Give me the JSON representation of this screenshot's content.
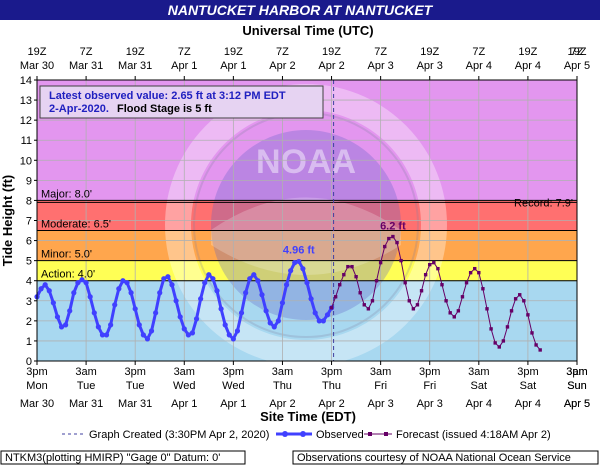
{
  "chart_data": {
    "type": "line",
    "title": "NANTUCKET HARBOR AT NANTUCKET",
    "top_axis_title": "Universal Time (UTC)",
    "bottom_axis_title": "Site Time (EDT)",
    "ylabel": "Tide Height (ft)",
    "ylim": [
      0,
      14
    ],
    "yticks": [
      0,
      1,
      2,
      3,
      4,
      5,
      6,
      7,
      8,
      9,
      10,
      11,
      12,
      13,
      14
    ],
    "grid": true,
    "x_range_hours": [
      0,
      132
    ],
    "x_tick_hours": [
      0,
      12,
      24,
      36,
      48,
      60,
      72,
      84,
      96,
      108,
      120,
      132
    ],
    "top_ticks": [
      {
        "time": "19Z",
        "date": "Mar 30"
      },
      {
        "time": "7Z",
        "date": "Mar 31"
      },
      {
        "time": "19Z",
        "date": "Mar 31"
      },
      {
        "time": "7Z",
        "date": "Apr 1"
      },
      {
        "time": "19Z",
        "date": "Apr 1"
      },
      {
        "time": "7Z",
        "date": "Apr 2"
      },
      {
        "time": "19Z",
        "date": "Apr 2"
      },
      {
        "time": "7Z",
        "date": "Apr 3"
      },
      {
        "time": "19Z",
        "date": "Apr 3"
      },
      {
        "time": "7Z",
        "date": "Apr 4"
      },
      {
        "time": "19Z",
        "date": "Apr 4"
      },
      {
        "time": "7Z",
        "date": "Apr 5"
      }
    ],
    "bottom_ticks": [
      {
        "time": "3pm",
        "day": "Mon",
        "date": "Mar 30"
      },
      {
        "time": "3am",
        "day": "Tue",
        "date": "Mar 31"
      },
      {
        "time": "3pm",
        "day": "Tue",
        "date": "Mar 31"
      },
      {
        "time": "3am",
        "day": "Wed",
        "date": "Apr 1"
      },
      {
        "time": "3pm",
        "day": "Wed",
        "date": "Apr 1"
      },
      {
        "time": "3am",
        "day": "Thu",
        "date": "Apr 2"
      },
      {
        "time": "3pm",
        "day": "Thu",
        "date": "Apr 2"
      },
      {
        "time": "3am",
        "day": "Fri",
        "date": "Apr 3"
      },
      {
        "time": "3pm",
        "day": "Fri",
        "date": "Apr 3"
      },
      {
        "time": "3am",
        "day": "Sat",
        "date": "Apr 4"
      },
      {
        "time": "3pm",
        "day": "Sat",
        "date": "Apr 4"
      },
      {
        "time": "3am",
        "day": "Sun",
        "date": "Apr 5"
      }
    ],
    "extra_bottom_tick": {
      "time": "3pm",
      "day": "Sun",
      "date": "Apr 5"
    },
    "extra_top_tick": {
      "time": "19Z",
      "date": ""
    },
    "bands": [
      {
        "name": "Major",
        "label": "Major: 8.0'",
        "from": 8,
        "to": 14,
        "color": "#e396ef"
      },
      {
        "name": "Moderate",
        "label": "Moderate: 6.5'",
        "from": 6.5,
        "to": 8,
        "color": "#ff7070"
      },
      {
        "name": "Minor",
        "label": "Minor: 5.0'",
        "from": 5,
        "to": 6.5,
        "color": "#ffa64d"
      },
      {
        "name": "Action",
        "label": "Action: 4.0'",
        "from": 4,
        "to": 5,
        "color": "#ffff55"
      }
    ],
    "record": {
      "label": "Record: 7.9'",
      "value": 7.9
    },
    "graph_created_hour": 72.5,
    "observed_peak_label": "4.96 ft",
    "forecast_peak_label": "6.2 ft",
    "info_box": {
      "line1": "Latest observed value: 2.65 ft at 3:12 PM EDT",
      "line2_date": "2-Apr-2020.",
      "line2_rest": "Flood Stage is 5 ft"
    },
    "series": [
      {
        "name": "Observed",
        "color": "#4040ff",
        "points": [
          [
            0,
            3.2
          ],
          [
            1,
            3.6
          ],
          [
            2,
            3.8
          ],
          [
            3,
            3.5
          ],
          [
            4,
            2.9
          ],
          [
            5,
            2.2
          ],
          [
            6,
            1.7
          ],
          [
            7,
            1.8
          ],
          [
            8,
            2.5
          ],
          [
            9,
            3.4
          ],
          [
            10,
            3.9
          ],
          [
            11,
            4.05
          ],
          [
            12,
            3.9
          ],
          [
            13,
            3.2
          ],
          [
            14,
            2.4
          ],
          [
            15,
            1.7
          ],
          [
            16,
            1.3
          ],
          [
            17,
            1.3
          ],
          [
            18,
            1.8
          ],
          [
            19,
            2.8
          ],
          [
            20,
            3.6
          ],
          [
            21,
            4.0
          ],
          [
            22,
            3.9
          ],
          [
            23,
            3.4
          ],
          [
            24,
            2.6
          ],
          [
            25,
            1.8
          ],
          [
            26,
            1.3
          ],
          [
            27,
            1.1
          ],
          [
            28,
            1.5
          ],
          [
            29,
            2.4
          ],
          [
            30,
            3.4
          ],
          [
            31,
            4.1
          ],
          [
            32,
            4.2
          ],
          [
            33,
            3.8
          ],
          [
            34,
            3.0
          ],
          [
            35,
            2.2
          ],
          [
            36,
            1.6
          ],
          [
            37,
            1.3
          ],
          [
            38,
            1.4
          ],
          [
            39,
            2.1
          ],
          [
            40,
            3.1
          ],
          [
            41,
            3.9
          ],
          [
            42,
            4.3
          ],
          [
            43,
            4.1
          ],
          [
            44,
            3.5
          ],
          [
            45,
            2.6
          ],
          [
            46,
            1.8
          ],
          [
            47,
            1.3
          ],
          [
            48,
            1.1
          ],
          [
            49,
            1.5
          ],
          [
            50,
            2.4
          ],
          [
            51,
            3.4
          ],
          [
            52,
            4.1
          ],
          [
            53,
            4.3
          ],
          [
            54,
            4.0
          ],
          [
            55,
            3.3
          ],
          [
            56,
            2.5
          ],
          [
            57,
            1.9
          ],
          [
            58,
            1.7
          ],
          [
            59,
            2.0
          ],
          [
            60,
            2.9
          ],
          [
            61,
            3.8
          ],
          [
            62,
            4.5
          ],
          [
            63,
            4.9
          ],
          [
            64,
            4.96
          ],
          [
            65,
            4.6
          ],
          [
            66,
            3.9
          ],
          [
            67,
            3.1
          ],
          [
            68,
            2.4
          ],
          [
            69,
            2.0
          ],
          [
            70,
            2.0
          ],
          [
            71,
            2.3
          ],
          [
            72,
            2.65
          ]
        ]
      },
      {
        "name": "Forecast (issued 4:18AM Apr 2)",
        "color": "#660066",
        "points": [
          [
            72,
            2.65
          ],
          [
            73,
            3.2
          ],
          [
            74,
            3.8
          ],
          [
            75,
            4.3
          ],
          [
            76,
            4.7
          ],
          [
            77,
            4.7
          ],
          [
            78,
            4.2
          ],
          [
            79,
            3.4
          ],
          [
            80,
            2.8
          ],
          [
            81,
            2.6
          ],
          [
            82,
            3.0
          ],
          [
            83,
            4.0
          ],
          [
            84,
            4.9
          ],
          [
            85,
            5.7
          ],
          [
            86,
            6.1
          ],
          [
            87,
            6.2
          ],
          [
            88,
            5.9
          ],
          [
            89,
            5.0
          ],
          [
            90,
            3.9
          ],
          [
            91,
            3.0
          ],
          [
            92,
            2.6
          ],
          [
            93,
            2.8
          ],
          [
            94,
            3.5
          ],
          [
            95,
            4.3
          ],
          [
            96,
            4.8
          ],
          [
            97,
            4.9
          ],
          [
            98,
            4.6
          ],
          [
            99,
            3.8
          ],
          [
            100,
            3.0
          ],
          [
            101,
            2.4
          ],
          [
            102,
            2.2
          ],
          [
            103,
            2.5
          ],
          [
            104,
            3.2
          ],
          [
            105,
            3.9
          ],
          [
            106,
            4.4
          ],
          [
            107,
            4.6
          ],
          [
            108,
            4.4
          ],
          [
            109,
            3.6
          ],
          [
            110,
            2.6
          ],
          [
            111,
            1.6
          ],
          [
            112,
            0.9
          ],
          [
            113,
            0.7
          ],
          [
            114,
            1.0
          ],
          [
            115,
            1.7
          ],
          [
            116,
            2.5
          ],
          [
            117,
            3.1
          ],
          [
            118,
            3.3
          ],
          [
            119,
            3.0
          ],
          [
            120,
            2.3
          ],
          [
            121,
            1.4
          ],
          [
            122,
            0.8
          ],
          [
            123,
            0.55
          ]
        ]
      }
    ],
    "legend": {
      "graph_created": "Graph Created (3:30PM Apr 2, 2020)",
      "observed": "Observed",
      "forecast": "Forecast (issued 4:18AM Apr 2)"
    },
    "footer_left": "NTKM3(plotting HMIRP) \"Gage 0\" Datum:  0'",
    "footer_right": "Observations courtesy of NOAA National Ocean Service",
    "watermark": "NOAA"
  }
}
